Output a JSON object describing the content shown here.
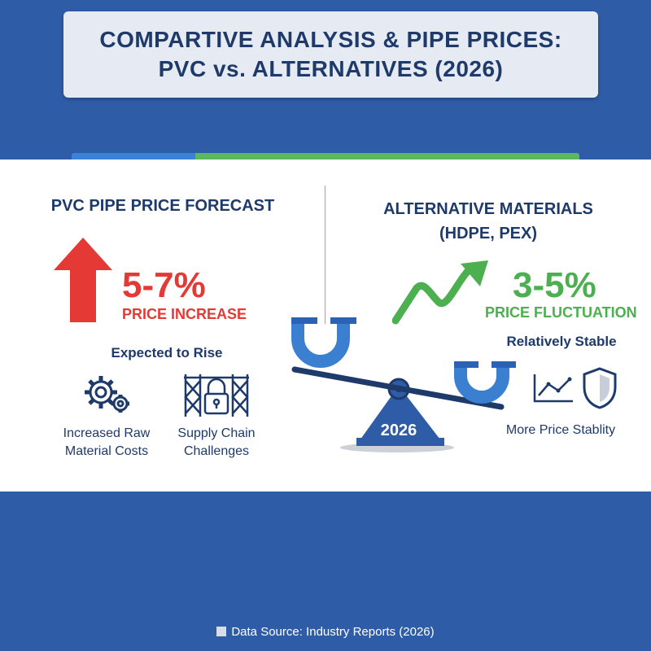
{
  "title": {
    "line1": "COMPARTIVE ANALYSIS & PIPE PRICES:",
    "line2": "PVC vs. ALTERNATIVES (2026)"
  },
  "pvc": {
    "heading": "PVC PIPE PRICE FORECAST",
    "percent": "5-7%",
    "percent_label": "PRICE INCREASE",
    "trend": "Expected to Rise",
    "factors": [
      {
        "label_line1": "Increased Raw",
        "label_line2": "Material Costs",
        "icon": "gears-icon"
      },
      {
        "label_line1": "Supply Chain",
        "label_line2": "Challenges",
        "icon": "fence-lock-icon"
      }
    ],
    "color": "#e53935"
  },
  "alt": {
    "heading_line1": "ALTERNATIVE MATERIALS",
    "heading_line2": "(HDPE, PEX)",
    "percent": "3-5%",
    "percent_label": "PRICE FLUCTUATION",
    "trend": "Relatively Stable",
    "stability_label": "More Price Stablity",
    "icons": [
      "line-chart-icon",
      "shield-icon"
    ],
    "color": "#4caf50"
  },
  "scale": {
    "year": "2026"
  },
  "footer": {
    "source": "Data Source: Industry Reports (2026)"
  },
  "colors": {
    "background": "#2f5ca6",
    "navy": "#1e3a6b",
    "pipe_blue": "#3b7fd0"
  }
}
